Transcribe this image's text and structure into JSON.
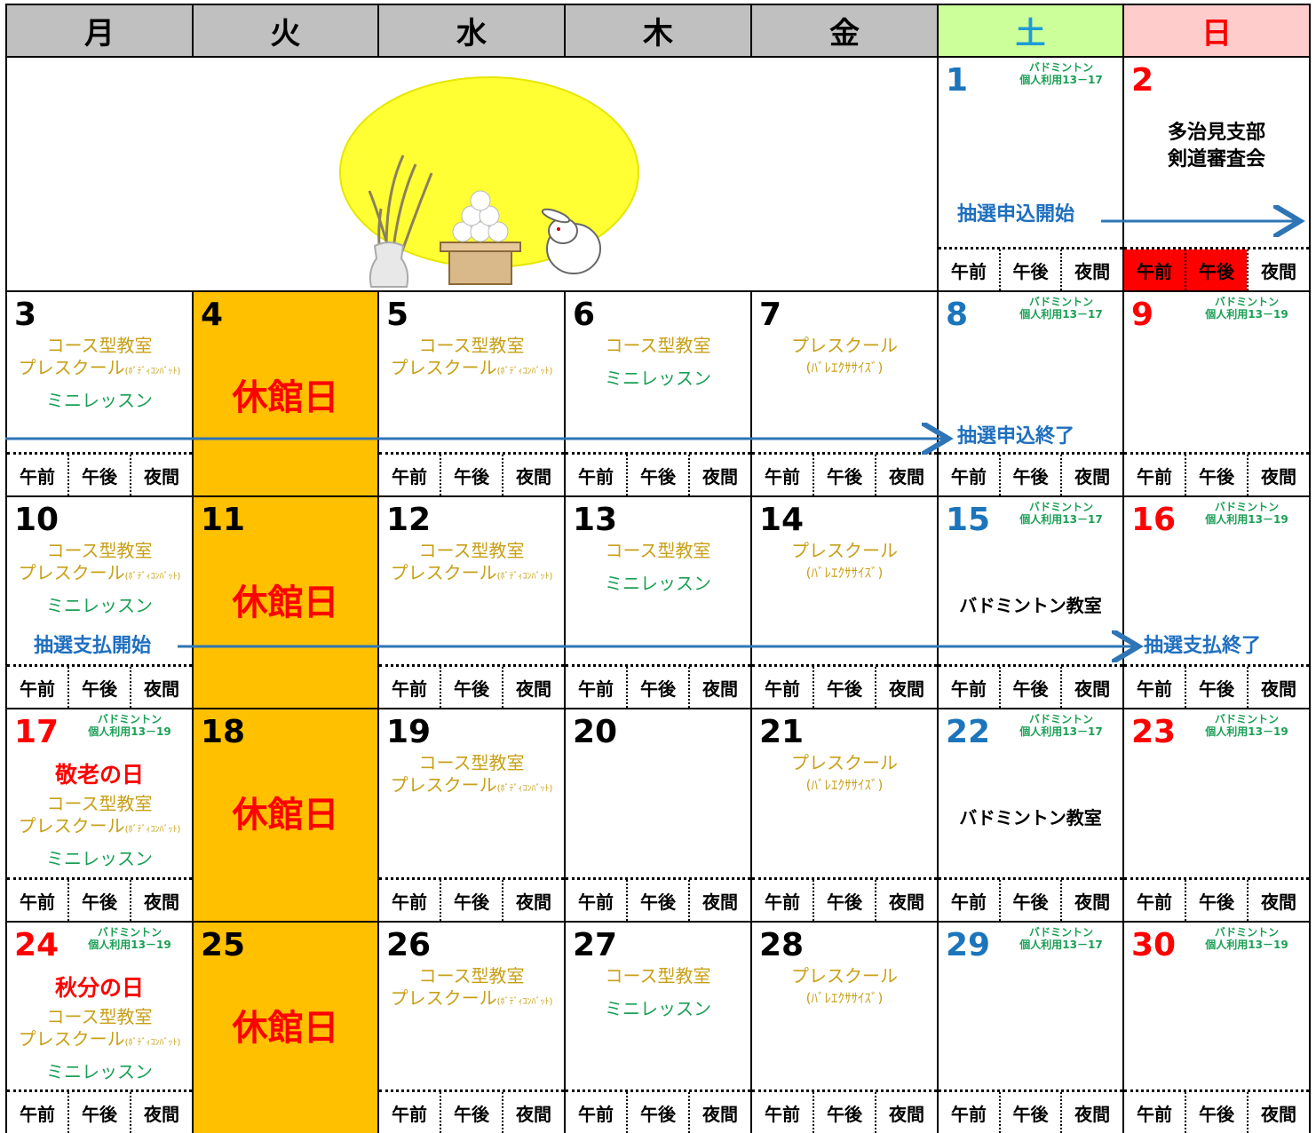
{
  "header": {
    "days": [
      {
        "label": "月",
        "bg": "#c0c0c0",
        "color": "#000000"
      },
      {
        "label": "火",
        "bg": "#c0c0c0",
        "color": "#000000"
      },
      {
        "label": "水",
        "bg": "#c0c0c0",
        "color": "#000000"
      },
      {
        "label": "木",
        "bg": "#c0c0c0",
        "color": "#000000"
      },
      {
        "label": "金",
        "bg": "#c0c0c0",
        "color": "#000000"
      },
      {
        "label": "土",
        "bg": "#ccff99",
        "color": "#1d9bd6"
      },
      {
        "label": "日",
        "bg": "#ffcccc",
        "color": "#ff0000"
      }
    ]
  },
  "slots": [
    "午前",
    "午後",
    "夜間"
  ],
  "weeks": [
    [
      null,
      null,
      null,
      null,
      null,
      {
        "date": 1,
        "color": "#1b75bc",
        "badminton": [
          "バドミントン",
          "個人利用13－17"
        ],
        "notes": []
      },
      {
        "date": 2,
        "color": "#ff0000",
        "notes": [
          {
            "kind": "event",
            "text": "多治見支部"
          },
          {
            "kind": "event",
            "text": "剣道審査会"
          }
        ],
        "reserved": [
          0,
          1
        ]
      }
    ],
    [
      {
        "date": 3,
        "color": "#000000",
        "notes": [
          {
            "kind": "course",
            "text": "コース型教室"
          },
          {
            "kind": "preschool",
            "text": "プレスクール",
            "small": "(ﾎﾞﾃﾞｨｺﾝﾊﾞｯﾄ)"
          },
          {
            "kind": "mini",
            "text": "ミニレッスン"
          }
        ]
      },
      {
        "date": 4,
        "color": "#000000",
        "closed": true,
        "bg": "#ffc000",
        "notes": [
          {
            "kind": "closed",
            "text": "休館日"
          }
        ]
      },
      {
        "date": 5,
        "color": "#000000",
        "notes": [
          {
            "kind": "course",
            "text": "コース型教室"
          },
          {
            "kind": "preschool",
            "text": "プレスクール",
            "small": "(ﾎﾞﾃﾞｨｺﾝﾊﾞｯﾄ)"
          }
        ]
      },
      {
        "date": 6,
        "color": "#000000",
        "notes": [
          {
            "kind": "course",
            "text": "コース型教室"
          },
          {
            "kind": "mini",
            "text": "ミニレッスン"
          }
        ]
      },
      {
        "date": 7,
        "color": "#000000",
        "notes": [
          {
            "kind": "course",
            "text": "プレスクール"
          },
          {
            "kind": "sub",
            "text": "(ﾊﾞﾚｴｸｻｻｲｽﾞ)"
          }
        ]
      },
      {
        "date": 8,
        "color": "#1b75bc",
        "badminton": [
          "バドミントン",
          "個人利用13－17"
        ],
        "notes": []
      },
      {
        "date": 9,
        "color": "#ff0000",
        "badminton": [
          "バドミントン",
          "個人利用13－19"
        ],
        "notes": []
      }
    ],
    [
      {
        "date": 10,
        "color": "#000000",
        "notes": [
          {
            "kind": "course",
            "text": "コース型教室"
          },
          {
            "kind": "preschool",
            "text": "プレスクール",
            "small": "(ﾎﾞﾃﾞｨｺﾝﾊﾞｯﾄ)"
          },
          {
            "kind": "mini",
            "text": "ミニレッスン"
          }
        ]
      },
      {
        "date": 11,
        "color": "#000000",
        "closed": true,
        "bg": "#ffc000",
        "notes": [
          {
            "kind": "closed",
            "text": "休館日"
          }
        ]
      },
      {
        "date": 12,
        "color": "#000000",
        "notes": [
          {
            "kind": "course",
            "text": "コース型教室"
          },
          {
            "kind": "preschool",
            "text": "プレスクール",
            "small": "(ﾎﾞﾃﾞｨｺﾝﾊﾞｯﾄ)"
          }
        ]
      },
      {
        "date": 13,
        "color": "#000000",
        "notes": [
          {
            "kind": "course",
            "text": "コース型教室"
          },
          {
            "kind": "mini",
            "text": "ミニレッスン"
          }
        ]
      },
      {
        "date": 14,
        "color": "#000000",
        "notes": [
          {
            "kind": "course",
            "text": "プレスクール"
          },
          {
            "kind": "sub",
            "text": "(ﾊﾞﾚｴｸｻｻｲｽﾞ)"
          }
        ]
      },
      {
        "date": 15,
        "color": "#1b75bc",
        "badminton": [
          "バドミントン",
          "個人利用13－17"
        ],
        "notes": [
          {
            "kind": "class",
            "text": "バドミントン教室"
          }
        ]
      },
      {
        "date": 16,
        "color": "#ff0000",
        "badminton": [
          "バドミントン",
          "個人利用13－19"
        ],
        "notes": []
      }
    ],
    [
      {
        "date": 17,
        "color": "#ff0000",
        "badminton": [
          "バドミントン",
          "個人利用13－19"
        ],
        "notes": [
          {
            "kind": "holiday",
            "text": "敬老の日"
          },
          {
            "kind": "course",
            "text": "コース型教室"
          },
          {
            "kind": "preschool",
            "text": "プレスクール",
            "small": "(ﾎﾞﾃﾞｨｺﾝﾊﾞｯﾄ)"
          },
          {
            "kind": "mini",
            "text": "ミニレッスン"
          }
        ]
      },
      {
        "date": 18,
        "color": "#000000",
        "closed": true,
        "bg": "#ffc000",
        "notes": [
          {
            "kind": "closed",
            "text": "休館日"
          }
        ]
      },
      {
        "date": 19,
        "color": "#000000",
        "notes": [
          {
            "kind": "course",
            "text": "コース型教室"
          },
          {
            "kind": "preschool",
            "text": "プレスクール",
            "small": "(ﾎﾞﾃﾞｨｺﾝﾊﾞｯﾄ)"
          }
        ]
      },
      {
        "date": 20,
        "color": "#000000",
        "notes": []
      },
      {
        "date": 21,
        "color": "#000000",
        "notes": [
          {
            "kind": "course",
            "text": "プレスクール"
          },
          {
            "kind": "sub",
            "text": "(ﾊﾞﾚｴｸｻｻｲｽﾞ)"
          }
        ]
      },
      {
        "date": 22,
        "color": "#1b75bc",
        "badminton": [
          "バドミントン",
          "個人利用13－17"
        ],
        "notes": [
          {
            "kind": "class",
            "text": "バドミントン教室"
          }
        ]
      },
      {
        "date": 23,
        "color": "#ff0000",
        "badminton": [
          "バドミントン",
          "個人利用13－19"
        ],
        "notes": []
      }
    ],
    [
      {
        "date": 24,
        "color": "#ff0000",
        "badminton": [
          "バドミントン",
          "個人利用13－19"
        ],
        "notes": [
          {
            "kind": "holiday",
            "text": "秋分の日"
          },
          {
            "kind": "course",
            "text": "コース型教室"
          },
          {
            "kind": "preschool",
            "text": "プレスクール",
            "small": "(ﾎﾞﾃﾞｨｺﾝﾊﾞｯﾄ)"
          },
          {
            "kind": "mini",
            "text": "ミニレッスン"
          }
        ]
      },
      {
        "date": 25,
        "color": "#000000",
        "closed": true,
        "bg": "#ffc000",
        "notes": [
          {
            "kind": "closed",
            "text": "休館日"
          }
        ]
      },
      {
        "date": 26,
        "color": "#000000",
        "notes": [
          {
            "kind": "course",
            "text": "コース型教室"
          },
          {
            "kind": "preschool",
            "text": "プレスクール",
            "small": "(ﾎﾞﾃﾞｨｺﾝﾊﾞｯﾄ)"
          }
        ]
      },
      {
        "date": 27,
        "color": "#000000",
        "notes": [
          {
            "kind": "course",
            "text": "コース型教室"
          },
          {
            "kind": "mini",
            "text": "ミニレッスン"
          }
        ]
      },
      {
        "date": 28,
        "color": "#000000",
        "notes": [
          {
            "kind": "course",
            "text": "プレスクール"
          },
          {
            "kind": "sub",
            "text": "(ﾊﾞﾚｴｸｻｻｲｽﾞ)"
          }
        ]
      },
      {
        "date": 29,
        "color": "#1b75bc",
        "badminton": [
          "バドミントン",
          "個人利用13－17"
        ],
        "notes": []
      },
      {
        "date": 30,
        "color": "#ff0000",
        "badminton": [
          "バドミントン",
          "個人利用13－19"
        ],
        "notes": []
      }
    ]
  ],
  "annotations": [
    {
      "text": "抽選申込開始"
    },
    {
      "text": "抽選申込終了"
    },
    {
      "text": "抽選支払開始"
    },
    {
      "text": "抽選支払終了"
    }
  ]
}
